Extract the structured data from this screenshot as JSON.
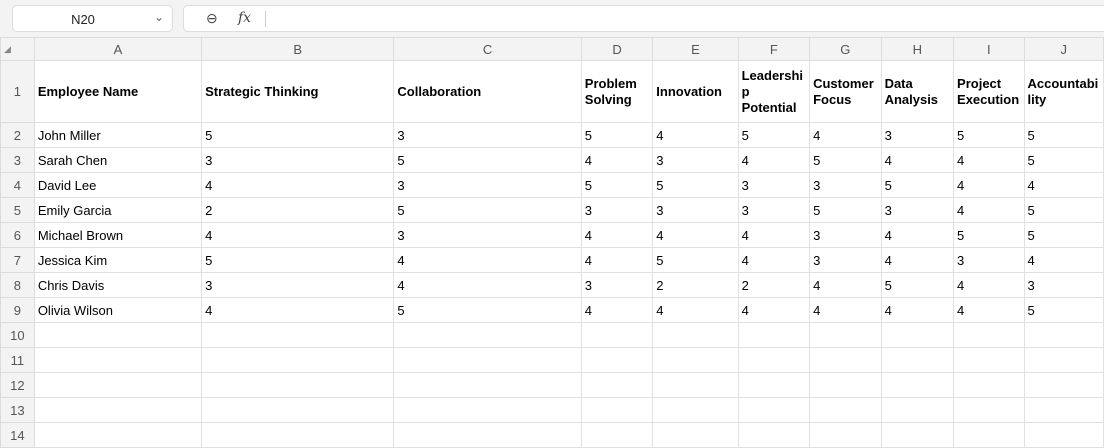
{
  "name_box": {
    "value": "N20"
  },
  "formula_bar": {
    "value": "",
    "zoom_icon": "zoom-out-icon",
    "fx_label": "fx"
  },
  "columns": [
    "A",
    "B",
    "C",
    "D",
    "E",
    "F",
    "G",
    "H",
    "I",
    "J"
  ],
  "headers": [
    "Employee Name",
    "Strategic Thinking",
    "Collaboration",
    "Problem Solving",
    "Innovation",
    "Leadership Potential",
    "Customer Focus",
    "Data Analysis",
    "Project Execution",
    "Accountability"
  ],
  "rows": [
    [
      "John Miller",
      "5",
      "3",
      "5",
      "4",
      "5",
      "4",
      "3",
      "5",
      "5"
    ],
    [
      "Sarah Chen",
      "3",
      "5",
      "4",
      "3",
      "4",
      "5",
      "4",
      "4",
      "5"
    ],
    [
      "David Lee",
      "4",
      "3",
      "5",
      "5",
      "3",
      "3",
      "5",
      "4",
      "4"
    ],
    [
      "Emily Garcia",
      "2",
      "5",
      "3",
      "3",
      "3",
      "5",
      "3",
      "4",
      "5"
    ],
    [
      "Michael Brown",
      "4",
      "3",
      "4",
      "4",
      "4",
      "3",
      "4",
      "5",
      "5"
    ],
    [
      "Jessica Kim",
      "5",
      "4",
      "4",
      "5",
      "4",
      "3",
      "4",
      "3",
      "4"
    ],
    [
      "Chris Davis",
      "3",
      "4",
      "3",
      "2",
      "2",
      "4",
      "5",
      "4",
      "3"
    ],
    [
      "Olivia Wilson",
      "4",
      "5",
      "4",
      "4",
      "4",
      "4",
      "4",
      "4",
      "5"
    ]
  ],
  "row_numbers": [
    "1",
    "2",
    "3",
    "4",
    "5",
    "6",
    "7",
    "8",
    "9",
    "10",
    "11",
    "12",
    "13",
    "14"
  ]
}
